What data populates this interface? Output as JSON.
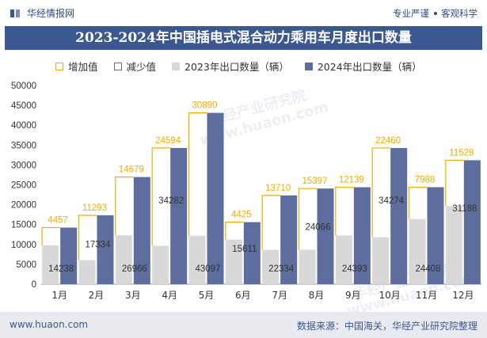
{
  "header": {
    "brand": "华经情报网",
    "slogan_left": "专业严谨",
    "slogan_right": "客观科学"
  },
  "title": "2023-2024年中国插电式混合动力乘用车月度出口数量",
  "legend": {
    "increase": "增加值",
    "decrease": "减少值",
    "s2023": "2023年出口数量（辆）",
    "s2024": "2024年出口数量（辆）"
  },
  "footer": {
    "site": "www.huaon.com",
    "source": "数据来源：中国海关，华经产业研究院整理"
  },
  "watermarks": [
    "华经产业研究院",
    "www.huaon.com",
    "华经产业研究院",
    "www.huaon.com"
  ],
  "colors": {
    "s2023": "#d8d8d8",
    "s2024": "#5d6e9e",
    "increase": "#f0ad00",
    "decrease": "#5a6f9e",
    "title_bg": "#3b5891"
  },
  "chart_data": {
    "type": "bar",
    "categories": [
      "1月",
      "2月",
      "3月",
      "4月",
      "5月",
      "6月",
      "7月",
      "8月",
      "9月",
      "10月",
      "11月",
      "12月"
    ],
    "series": [
      {
        "name": "2023年出口数量（辆）",
        "values": [
          9781,
          6041,
          12287,
          9688,
          12207,
          11186,
          8624,
          8669,
          12254,
          11814,
          16420,
          19660
        ]
      },
      {
        "name": "2024年出口数量（辆）",
        "values": [
          14238,
          17334,
          26966,
          34282,
          43097,
          15611,
          22334,
          24066,
          24393,
          34274,
          24408,
          31188
        ]
      }
    ],
    "increase": [
      4457,
      11293,
      14679,
      24594,
      30890,
      4425,
      13710,
      15397,
      12139,
      22460,
      7988,
      11528
    ],
    "ylim": [
      0,
      50000
    ],
    "yticks": [
      0,
      5000,
      10000,
      15000,
      20000,
      25000,
      30000,
      35000,
      40000,
      45000,
      50000
    ]
  }
}
